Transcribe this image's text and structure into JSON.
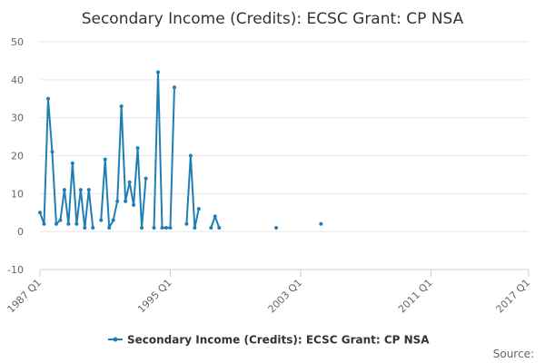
{
  "chart_data": {
    "type": "line",
    "title": "Secondary Income (Credits): ECSC Grant: CP NSA",
    "xlabel": "",
    "ylabel": "",
    "x_type": "quarterly",
    "xlim": [
      "1987 Q1",
      "2017 Q1"
    ],
    "ylim": [
      -10,
      50
    ],
    "y_ticks": [
      -10,
      0,
      10,
      20,
      30,
      40,
      50
    ],
    "x_ticks": [
      "1987 Q1",
      "1995 Q1",
      "2003 Q1",
      "2011 Q1",
      "2017 Q1"
    ],
    "grid": {
      "horizontal": true,
      "vertical": false
    },
    "legend_position": "bottom",
    "source_label": "Source:",
    "series": [
      {
        "name": "Secondary Income (Credits): ECSC Grant: CP NSA",
        "color": "#1f7fb4",
        "points": [
          [
            "1987 Q1",
            5
          ],
          [
            "1987 Q2",
            2
          ],
          [
            "1987 Q3",
            35
          ],
          [
            "1987 Q4",
            21
          ],
          [
            "1988 Q1",
            2
          ],
          [
            "1988 Q2",
            3
          ],
          [
            "1988 Q3",
            11
          ],
          [
            "1988 Q4",
            2
          ],
          [
            "1989 Q1",
            18
          ],
          [
            "1989 Q2",
            2
          ],
          [
            "1989 Q3",
            11
          ],
          [
            "1989 Q4",
            1
          ],
          [
            "1990 Q1",
            11
          ],
          [
            "1990 Q2",
            1
          ],
          [
            "1990 Q3",
            null
          ],
          [
            "1990 Q4",
            3
          ],
          [
            "1991 Q1",
            19
          ],
          [
            "1991 Q2",
            1
          ],
          [
            "1991 Q3",
            3
          ],
          [
            "1991 Q4",
            8
          ],
          [
            "1992 Q1",
            33
          ],
          [
            "1992 Q2",
            8
          ],
          [
            "1992 Q3",
            13
          ],
          [
            "1992 Q4",
            7
          ],
          [
            "1993 Q1",
            22
          ],
          [
            "1993 Q2",
            1
          ],
          [
            "1993 Q3",
            14
          ],
          [
            "1993 Q4",
            null
          ],
          [
            "1994 Q1",
            1
          ],
          [
            "1994 Q2",
            42
          ],
          [
            "1994 Q3",
            1
          ],
          [
            "1994 Q4",
            1
          ],
          [
            "1995 Q1",
            1
          ],
          [
            "1995 Q2",
            38
          ],
          [
            "1995 Q3",
            null
          ],
          [
            "1995 Q4",
            null
          ],
          [
            "1996 Q1",
            2
          ],
          [
            "1996 Q2",
            20
          ],
          [
            "1996 Q3",
            1
          ],
          [
            "1996 Q4",
            6
          ],
          [
            "1997 Q1",
            null
          ],
          [
            "1997 Q2",
            null
          ],
          [
            "1997 Q3",
            1
          ],
          [
            "1997 Q4",
            4
          ],
          [
            "1998 Q1",
            1
          ],
          [
            "2001 Q3",
            1
          ],
          [
            "2004 Q2",
            2
          ]
        ]
      }
    ]
  }
}
